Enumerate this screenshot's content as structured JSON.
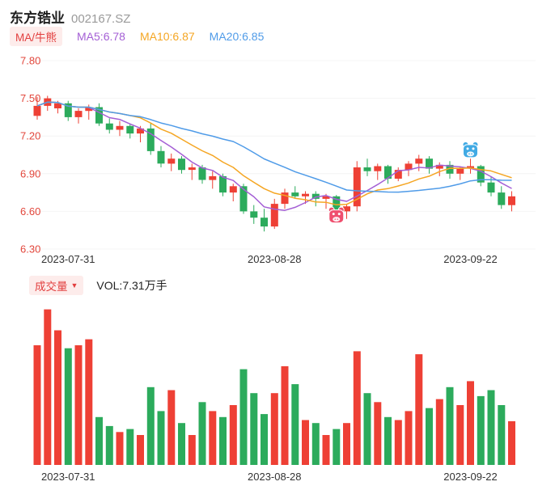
{
  "header": {
    "stock_name": "东方锆业",
    "stock_code": "002167.SZ"
  },
  "legend": {
    "ma_bull_bear": "MA/牛熊",
    "ma5": "MA5:6.78",
    "ma10": "MA10:6.87",
    "ma20": "MA20:6.85"
  },
  "volume": {
    "label": "成交量",
    "dropdown_arrow": "▼",
    "value": "VOL:7.31万手"
  },
  "chart_data": {
    "type": "candlestick+volume",
    "title": "东方锆业 002167.SZ 日K线",
    "stock_name": "东方锆业",
    "symbol": "002167.SZ",
    "ma_values": {
      "MA5": 6.78,
      "MA10": 6.87,
      "MA20": 6.85
    },
    "volume_unit": "万手",
    "latest_volume": 7.31,
    "y_axis": {
      "min": 6.3,
      "max": 7.8,
      "ticks": [
        {
          "label": "7.80",
          "value": 7.8
        },
        {
          "label": "7.50",
          "value": 7.5
        },
        {
          "label": "7.20",
          "value": 7.2
        },
        {
          "label": "6.90",
          "value": 6.9
        },
        {
          "label": "6.60",
          "value": 6.6
        },
        {
          "label": "6.30",
          "value": 6.3
        }
      ]
    },
    "x_ticks": [
      {
        "label": "2023-07-31",
        "index": 3
      },
      {
        "label": "2023-08-28",
        "index": 23
      },
      {
        "label": "2023-09-22",
        "index": 42
      }
    ],
    "markers": [
      {
        "type": "bull",
        "date": "2023-09-05",
        "index": 29,
        "price": 6.56
      },
      {
        "type": "bear",
        "date": "2023-09-22",
        "index": 42,
        "price": 7.08
      }
    ],
    "colors": {
      "up": "#ee4035",
      "down": "#2cab5c",
      "ma5": "#a45fd5",
      "ma10": "#f5a623",
      "ma20": "#4f9be8",
      "axis_price": "#e2473c",
      "axis_date": "#333333",
      "bull_badge": "#ef4f6e",
      "bear_badge": "#41aae4",
      "pill_bg": "#fdeceb",
      "pill_text": "#e23e3e"
    },
    "candles": [
      {
        "d": "2023-07-26",
        "o": 7.36,
        "h": 7.51,
        "l": 7.33,
        "c": 7.44,
        "v": 20.0
      },
      {
        "d": "2023-07-27",
        "o": 7.44,
        "h": 7.52,
        "l": 7.4,
        "c": 7.5,
        "v": 26.0
      },
      {
        "d": "2023-07-28",
        "o": 7.42,
        "h": 7.48,
        "l": 7.38,
        "c": 7.46,
        "v": 22.5
      },
      {
        "d": "2023-07-31",
        "o": 7.46,
        "h": 7.48,
        "l": 7.32,
        "c": 7.35,
        "v": 19.5
      },
      {
        "d": "2023-08-01",
        "o": 7.35,
        "h": 7.42,
        "l": 7.3,
        "c": 7.4,
        "v": 20.0
      },
      {
        "d": "2023-08-02",
        "o": 7.4,
        "h": 7.45,
        "l": 7.33,
        "c": 7.43,
        "v": 21.0
      },
      {
        "d": "2023-08-03",
        "o": 7.43,
        "h": 7.46,
        "l": 7.28,
        "c": 7.3,
        "v": 8.0
      },
      {
        "d": "2023-08-04",
        "o": 7.3,
        "h": 7.34,
        "l": 7.22,
        "c": 7.25,
        "v": 6.5
      },
      {
        "d": "2023-08-07",
        "o": 7.25,
        "h": 7.32,
        "l": 7.2,
        "c": 7.28,
        "v": 5.5
      },
      {
        "d": "2023-08-08",
        "o": 7.28,
        "h": 7.3,
        "l": 7.18,
        "c": 7.22,
        "v": 6.0
      },
      {
        "d": "2023-08-09",
        "o": 7.22,
        "h": 7.28,
        "l": 7.15,
        "c": 7.26,
        "v": 5.0
      },
      {
        "d": "2023-08-10",
        "o": 7.26,
        "h": 7.3,
        "l": 7.05,
        "c": 7.08,
        "v": 13.0
      },
      {
        "d": "2023-08-11",
        "o": 7.08,
        "h": 7.12,
        "l": 6.95,
        "c": 6.98,
        "v": 9.0
      },
      {
        "d": "2023-08-14",
        "o": 6.98,
        "h": 7.06,
        "l": 6.92,
        "c": 7.02,
        "v": 12.5
      },
      {
        "d": "2023-08-15",
        "o": 7.02,
        "h": 7.04,
        "l": 6.9,
        "c": 6.93,
        "v": 7.0
      },
      {
        "d": "2023-08-16",
        "o": 6.93,
        "h": 6.98,
        "l": 6.85,
        "c": 6.95,
        "v": 5.0
      },
      {
        "d": "2023-08-17",
        "o": 6.95,
        "h": 6.97,
        "l": 6.82,
        "c": 6.85,
        "v": 10.5
      },
      {
        "d": "2023-08-18",
        "o": 6.85,
        "h": 6.92,
        "l": 6.78,
        "c": 6.88,
        "v": 9.0
      },
      {
        "d": "2023-08-21",
        "o": 6.88,
        "h": 6.9,
        "l": 6.72,
        "c": 6.75,
        "v": 8.0
      },
      {
        "d": "2023-08-22",
        "o": 6.75,
        "h": 6.82,
        "l": 6.68,
        "c": 6.8,
        "v": 10.0
      },
      {
        "d": "2023-08-23",
        "o": 6.8,
        "h": 6.82,
        "l": 6.58,
        "c": 6.6,
        "v": 16.0
      },
      {
        "d": "2023-08-24",
        "o": 6.6,
        "h": 6.65,
        "l": 6.5,
        "c": 6.55,
        "v": 12.0
      },
      {
        "d": "2023-08-25",
        "o": 6.55,
        "h": 6.62,
        "l": 6.44,
        "c": 6.48,
        "v": 8.5
      },
      {
        "d": "2023-08-28",
        "o": 6.48,
        "h": 6.7,
        "l": 6.46,
        "c": 6.66,
        "v": 12.0
      },
      {
        "d": "2023-08-29",
        "o": 6.66,
        "h": 6.78,
        "l": 6.62,
        "c": 6.75,
        "v": 16.5
      },
      {
        "d": "2023-08-30",
        "o": 6.75,
        "h": 6.8,
        "l": 6.7,
        "c": 6.72,
        "v": 13.5
      },
      {
        "d": "2023-08-31",
        "o": 6.72,
        "h": 6.76,
        "l": 6.66,
        "c": 6.74,
        "v": 7.5
      },
      {
        "d": "2023-09-01",
        "o": 6.74,
        "h": 6.76,
        "l": 6.64,
        "c": 6.7,
        "v": 7.0
      },
      {
        "d": "2023-09-04",
        "o": 6.7,
        "h": 6.74,
        "l": 6.62,
        "c": 6.72,
        "v": 5.0
      },
      {
        "d": "2023-09-05",
        "o": 6.72,
        "h": 6.73,
        "l": 6.52,
        "c": 6.6,
        "v": 6.0
      },
      {
        "d": "2023-09-06",
        "o": 6.6,
        "h": 6.66,
        "l": 6.54,
        "c": 6.64,
        "v": 7.0
      },
      {
        "d": "2023-09-07",
        "o": 6.64,
        "h": 7.0,
        "l": 6.6,
        "c": 6.95,
        "v": 19.0
      },
      {
        "d": "2023-09-08",
        "o": 6.95,
        "h": 7.02,
        "l": 6.88,
        "c": 6.92,
        "v": 12.0
      },
      {
        "d": "2023-09-11",
        "o": 6.92,
        "h": 6.98,
        "l": 6.85,
        "c": 6.96,
        "v": 10.5
      },
      {
        "d": "2023-09-12",
        "o": 6.96,
        "h": 6.97,
        "l": 6.82,
        "c": 6.86,
        "v": 8.0
      },
      {
        "d": "2023-09-13",
        "o": 6.86,
        "h": 6.95,
        "l": 6.84,
        "c": 6.93,
        "v": 7.5
      },
      {
        "d": "2023-09-14",
        "o": 6.93,
        "h": 7.0,
        "l": 6.88,
        "c": 6.98,
        "v": 9.0
      },
      {
        "d": "2023-09-15",
        "o": 6.98,
        "h": 7.05,
        "l": 6.92,
        "c": 7.02,
        "v": 18.5
      },
      {
        "d": "2023-09-18",
        "o": 7.02,
        "h": 7.04,
        "l": 6.9,
        "c": 6.94,
        "v": 9.5
      },
      {
        "d": "2023-09-19",
        "o": 6.94,
        "h": 6.99,
        "l": 6.88,
        "c": 6.97,
        "v": 11.0
      },
      {
        "d": "2023-09-20",
        "o": 6.97,
        "h": 7.0,
        "l": 6.86,
        "c": 6.9,
        "v": 13.0
      },
      {
        "d": "2023-09-21",
        "o": 6.9,
        "h": 6.96,
        "l": 6.85,
        "c": 6.94,
        "v": 10.0
      },
      {
        "d": "2023-09-22",
        "o": 6.94,
        "h": 7.02,
        "l": 6.9,
        "c": 6.96,
        "v": 14.0
      },
      {
        "d": "2023-09-25",
        "o": 6.96,
        "h": 6.97,
        "l": 6.8,
        "c": 6.83,
        "v": 11.5
      },
      {
        "d": "2023-09-26",
        "o": 6.83,
        "h": 6.88,
        "l": 6.72,
        "c": 6.75,
        "v": 12.5
      },
      {
        "d": "2023-09-27",
        "o": 6.75,
        "h": 6.8,
        "l": 6.62,
        "c": 6.65,
        "v": 10.0
      },
      {
        "d": "2023-09-28",
        "o": 6.65,
        "h": 6.76,
        "l": 6.6,
        "c": 6.72,
        "v": 7.31
      }
    ]
  }
}
